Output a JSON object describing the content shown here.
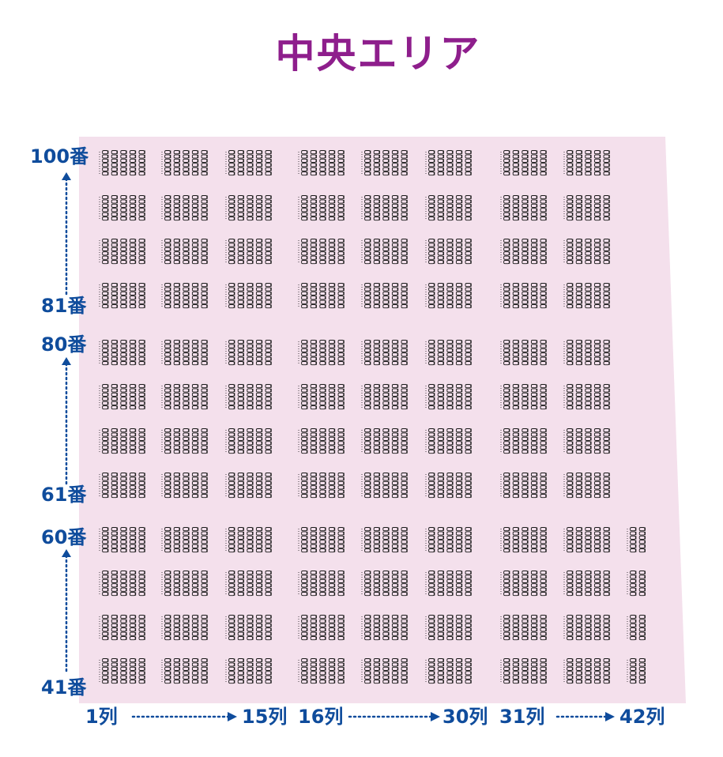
{
  "title": "中央エリア",
  "colors": {
    "title": "#8e1e8c",
    "labels": "#0f4c9c",
    "area": "#f4e0ec",
    "seat": "#1a1a1a"
  },
  "row_labels": {
    "r100": "100番",
    "r81": "81番",
    "r80": "80番",
    "r61": "61番",
    "r60": "60番",
    "r41": "41番"
  },
  "col_labels": {
    "c1": "1列",
    "c15": "15列",
    "c16": "16列",
    "c30": "30列",
    "c31": "31列",
    "c42": "42列"
  },
  "seating": {
    "rows_from": 41,
    "rows_to": 100,
    "cols_from": 1,
    "cols_to": 42,
    "row_label_interval": 20,
    "col_blocks": [
      "1-15",
      "16-30",
      "31-42"
    ],
    "seats_per_block_row": 5,
    "seat_glyph": "chair-icon"
  }
}
